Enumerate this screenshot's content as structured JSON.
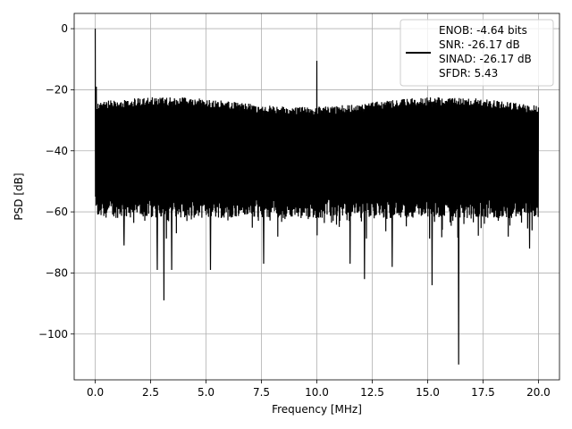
{
  "chart_data": {
    "type": "line",
    "title": "",
    "xlabel": "Frequency [MHz]",
    "ylabel": "PSD [dB]",
    "xlim": [
      -0.95,
      20.95
    ],
    "ylim": [
      -115,
      5
    ],
    "xticks": [
      0.0,
      2.5,
      5.0,
      7.5,
      10.0,
      12.5,
      15.0,
      17.5,
      20.0
    ],
    "xtick_labels": [
      "0.0",
      "2.5",
      "5.0",
      "7.5",
      "10.0",
      "12.5",
      "15.0",
      "17.5",
      "20.0"
    ],
    "yticks": [
      0,
      -20,
      -40,
      -60,
      -80,
      -100
    ],
    "ytick_labels": [
      "0",
      "−20",
      "−40",
      "−60",
      "−80",
      "−100"
    ],
    "grid": true,
    "legend_position": "top-right",
    "series": [
      {
        "legend_lines": [
          "ENOB: -4.64 bits",
          "SNR: -26.17 dB",
          "SINAD: -26.17 dB",
          "SFDR: 5.43"
        ],
        "color": "#000000",
        "x_range": [
          0.0,
          20.0
        ],
        "noise_floor_top_db": -22,
        "noise_floor_bottom_db": -63,
        "peaks": [
          {
            "x": 0.0,
            "y": 0
          },
          {
            "x": 0.05,
            "y": -19
          },
          {
            "x": 10.0,
            "y": -10.5
          }
        ],
        "dips": [
          {
            "x": 1.3,
            "y": -71
          },
          {
            "x": 2.8,
            "y": -79
          },
          {
            "x": 3.1,
            "y": -89
          },
          {
            "x": 3.45,
            "y": -79
          },
          {
            "x": 5.2,
            "y": -79
          },
          {
            "x": 7.6,
            "y": -77
          },
          {
            "x": 11.5,
            "y": -77
          },
          {
            "x": 12.15,
            "y": -82
          },
          {
            "x": 13.4,
            "y": -78
          },
          {
            "x": 15.2,
            "y": -84
          },
          {
            "x": 16.4,
            "y": -110
          },
          {
            "x": 19.6,
            "y": -72
          }
        ]
      }
    ]
  }
}
